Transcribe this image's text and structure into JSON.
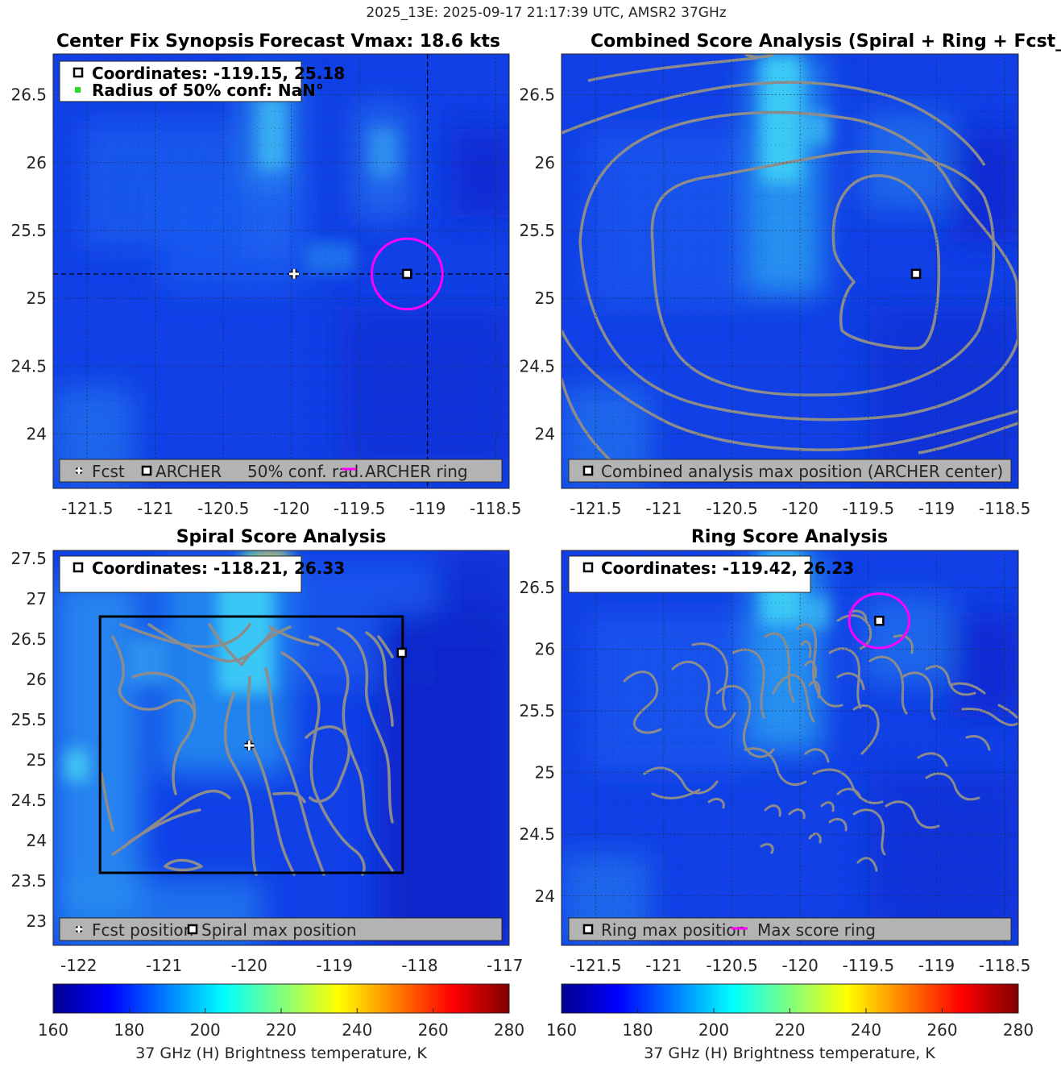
{
  "figure": {
    "suptitle": "2025_13E: 2025-09-17 21:17:39 UTC, AMSR2 37GHz",
    "colors": {
      "ring": "#ff00ff",
      "contour": "#8c8c8c",
      "legend_bg": "#b3b3b3",
      "grid": "#262626",
      "conf_dot": "#2bd92b"
    },
    "icons": {
      "forecast": "white-cross-icon",
      "archer": "square-marker-icon",
      "ring": "magenta-line-icon"
    }
  },
  "chart_data": [
    {
      "id": "synopsis",
      "type": "heatmap",
      "title_left": "Center Fix Synopsis",
      "title_right": "Forecast Vmax: 18.6 kts",
      "xlim": [
        -121.75,
        -118.4
      ],
      "ylim": [
        23.6,
        26.8
      ],
      "xticks": [
        -121.5,
        -121,
        -120.5,
        -120,
        -119.5,
        -119,
        -118.5
      ],
      "xtick_labels": [
        "-121.5",
        "-121",
        "-120.5",
        "-120",
        "-119.5",
        "-119",
        "-118.5"
      ],
      "yticks": [
        24,
        24.5,
        25,
        25.5,
        26,
        26.5
      ],
      "ytick_labels": [
        "24",
        "24.5",
        "25",
        "25.5",
        "26",
        "26.5"
      ],
      "grid": "dotted",
      "info_box": [
        "Coordinates: -119.15, 25.18",
        "Radius of 50% conf: NaN°"
      ],
      "legend": [
        "Fcst",
        "ARCHER",
        "50% conf. rad.",
        "ARCHER ring"
      ],
      "markers": [
        {
          "kind": "forecast",
          "lon": -119.98,
          "lat": 25.18
        },
        {
          "kind": "archer",
          "lon": -119.15,
          "lat": 25.18
        }
      ],
      "ring": {
        "lon": -119.15,
        "lat": 25.18,
        "radius_deg": 0.26
      },
      "crosshair": {
        "lon": -119.0,
        "lat": 25.18
      }
    },
    {
      "id": "combined",
      "type": "heatmap",
      "title": "Combined Score Analysis (Spiral + Ring + Fcst_Pe",
      "xlim": [
        -121.75,
        -118.4
      ],
      "ylim": [
        23.6,
        26.8
      ],
      "xticks": [
        -121.5,
        -121,
        -120.5,
        -120,
        -119.5,
        -119,
        -118.5
      ],
      "xtick_labels": [
        "-121.5",
        "-121",
        "-120.5",
        "-120",
        "-119.5",
        "-119",
        "-118.5"
      ],
      "yticks": [
        24,
        24.5,
        25,
        25.5,
        26,
        26.5
      ],
      "ytick_labels": [
        "24",
        "24.5",
        "25",
        "25.5",
        "26",
        "26.5"
      ],
      "grid": "dotted",
      "legend": [
        "Combined analysis max position (ARCHER center)"
      ],
      "markers": [
        {
          "kind": "archer",
          "lon": -119.15,
          "lat": 25.18
        }
      ]
    },
    {
      "id": "spiral",
      "type": "heatmap",
      "title": "Spiral Score Analysis",
      "xlim": [
        -122.3,
        -116.95
      ],
      "ylim": [
        22.7,
        27.6
      ],
      "xticks": [
        -122,
        -121,
        -120,
        -119,
        -118,
        -117
      ],
      "xtick_labels": [
        "-122",
        "-121",
        "-120",
        "-119",
        "-118",
        "-117"
      ],
      "yticks": [
        23,
        23.5,
        24,
        24.5,
        25,
        25.5,
        26,
        26.5,
        27,
        27.5
      ],
      "ytick_labels": [
        "23",
        "23.5",
        "24",
        "24.5",
        "25",
        "25.5",
        "26",
        "26.5",
        "27",
        "27.5"
      ],
      "grid": "none",
      "info_box": [
        "Coordinates: -118.21, 26.33"
      ],
      "legend": [
        "Fcst position",
        "Spiral max position"
      ],
      "markers": [
        {
          "kind": "forecast",
          "lon": -120.0,
          "lat": 25.18
        },
        {
          "kind": "archer",
          "lon": -118.21,
          "lat": 26.33
        }
      ],
      "search_box": {
        "lon_min": -121.75,
        "lon_max": -118.2,
        "lat_min": 23.6,
        "lat_max": 26.78
      }
    },
    {
      "id": "ring",
      "type": "heatmap",
      "title": "Ring Score Analysis",
      "xlim": [
        -121.75,
        -118.4
      ],
      "ylim": [
        23.6,
        26.8
      ],
      "xticks": [
        -121.5,
        -121,
        -120.5,
        -120,
        -119.5,
        -119,
        -118.5
      ],
      "xtick_labels": [
        "-121.5",
        "-121",
        "-120.5",
        "-120",
        "-119.5",
        "-119",
        "-118.5"
      ],
      "yticks": [
        24,
        24.5,
        25,
        25.5,
        26,
        26.5
      ],
      "ytick_labels": [
        "24",
        "24.5",
        "25",
        "25.5",
        "26",
        "26.5"
      ],
      "grid": "dotted",
      "info_box": [
        "Coordinates: -119.42, 26.23"
      ],
      "legend": [
        "Ring max position",
        "Max score ring"
      ],
      "markers": [
        {
          "kind": "archer",
          "lon": -119.42,
          "lat": 26.23
        }
      ],
      "ring": {
        "lon": -119.42,
        "lat": 26.23,
        "radius_deg": 0.22
      }
    }
  ],
  "colorbars": [
    {
      "id": "cbar-left",
      "range": [
        160,
        280
      ],
      "ticks": [
        160,
        180,
        200,
        220,
        240,
        260,
        280
      ],
      "tick_labels": [
        "160",
        "180",
        "200",
        "220",
        "240",
        "260",
        "280"
      ],
      "label": "37 GHz (H) Brightness temperature, K"
    },
    {
      "id": "cbar-right",
      "range": [
        160,
        280
      ],
      "ticks": [
        160,
        180,
        200,
        220,
        240,
        260,
        280
      ],
      "tick_labels": [
        "160",
        "180",
        "200",
        "220",
        "240",
        "260",
        "280"
      ],
      "label": "37 GHz (H) Brightness temperature, K"
    }
  ]
}
